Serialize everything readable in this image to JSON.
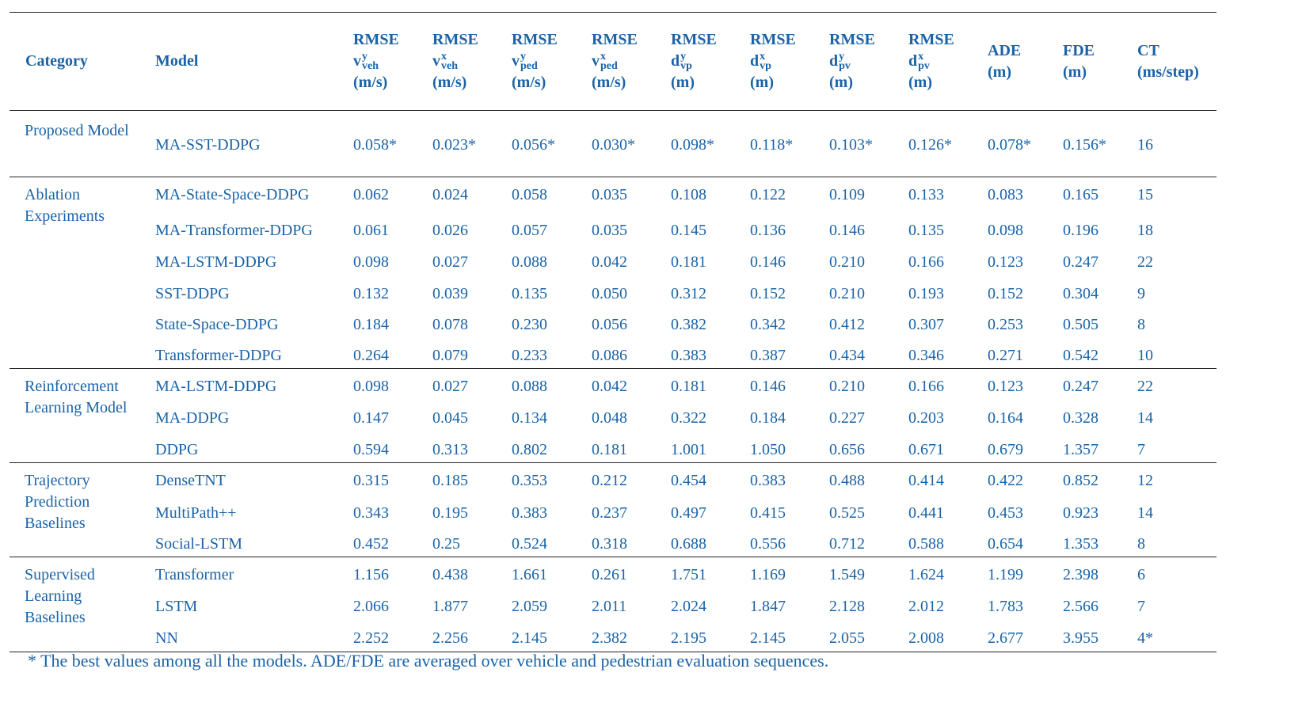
{
  "headers": {
    "category": "Category",
    "model": "Model",
    "metrics": [
      {
        "l1": "RMSE",
        "base": "v",
        "sup": "y",
        "sub": "veh",
        "unit": "(m/s)"
      },
      {
        "l1": "RMSE",
        "base": "v",
        "sup": "x",
        "sub": "veh",
        "unit": "(m/s)"
      },
      {
        "l1": "RMSE",
        "base": "v",
        "sup": "y",
        "sub": "ped",
        "unit": "(m/s)"
      },
      {
        "l1": "RMSE",
        "base": "v",
        "sup": "x",
        "sub": "ped",
        "unit": "(m/s)"
      },
      {
        "l1": "RMSE",
        "base": "d",
        "sup": "y",
        "sub": "vp",
        "unit": "(m)"
      },
      {
        "l1": "RMSE",
        "base": "d",
        "sup": "x",
        "sub": "vp",
        "unit": "(m)"
      },
      {
        "l1": "RMSE",
        "base": "d",
        "sup": "y",
        "sub": "pv",
        "unit": "(m)"
      },
      {
        "l1": "RMSE",
        "base": "d",
        "sup": "x",
        "sub": "pv",
        "unit": "(m)"
      }
    ],
    "ade": {
      "l1": "ADE",
      "l2": "(m)"
    },
    "fde": {
      "l1": "FDE",
      "l2": "(m)"
    },
    "ct": {
      "l1": "CT",
      "l2": "(ms/step)"
    }
  },
  "groups": [
    {
      "category": "Proposed Model",
      "rows": [
        {
          "model": "MA-SST-DDPG",
          "v": [
            "0.058*",
            "0.023*",
            "0.056*",
            "0.030*",
            "0.098*",
            "0.118*",
            "0.103*",
            "0.126*",
            "0.078*",
            "0.156*",
            "16"
          ]
        }
      ]
    },
    {
      "category": "Ablation Experiments",
      "rows": [
        {
          "model": "MA-State-Space-DDPG",
          "v": [
            "0.062",
            "0.024",
            "0.058",
            "0.035",
            "0.108",
            "0.122",
            "0.109",
            "0.133",
            "0.083",
            "0.165",
            "15"
          ]
        },
        {
          "model": "MA-Transformer-DDPG",
          "v": [
            "0.061",
            "0.026",
            "0.057",
            "0.035",
            "0.145",
            "0.136",
            "0.146",
            "0.135",
            "0.098",
            "0.196",
            "18"
          ]
        },
        {
          "model": "MA-LSTM-DDPG",
          "v": [
            "0.098",
            "0.027",
            "0.088",
            "0.042",
            "0.181",
            "0.146",
            "0.210",
            "0.166",
            "0.123",
            "0.247",
            "22"
          ]
        },
        {
          "model": "SST-DDPG",
          "v": [
            "0.132",
            "0.039",
            "0.135",
            "0.050",
            "0.312",
            "0.152",
            "0.210",
            "0.193",
            "0.152",
            "0.304",
            "9"
          ]
        },
        {
          "model": "State-Space-DDPG",
          "v": [
            "0.184",
            "0.078",
            "0.230",
            "0.056",
            "0.382",
            "0.342",
            "0.412",
            "0.307",
            "0.253",
            "0.505",
            "8"
          ]
        },
        {
          "model": "Transformer-DDPG",
          "v": [
            "0.264",
            "0.079",
            "0.233",
            "0.086",
            "0.383",
            "0.387",
            "0.434",
            "0.346",
            "0.271",
            "0.542",
            "10"
          ]
        }
      ]
    },
    {
      "category": "Reinforcement Learning Model",
      "rows": [
        {
          "model": "MA-LSTM-DDPG",
          "v": [
            "0.098",
            "0.027",
            "0.088",
            "0.042",
            "0.181",
            "0.146",
            "0.210",
            "0.166",
            "0.123",
            "0.247",
            "22"
          ]
        },
        {
          "model": "MA-DDPG",
          "v": [
            "0.147",
            "0.045",
            "0.134",
            "0.048",
            "0.322",
            "0.184",
            "0.227",
            "0.203",
            "0.164",
            "0.328",
            "14"
          ]
        },
        {
          "model": "DDPG",
          "v": [
            "0.594",
            "0.313",
            "0.802",
            "0.181",
            "1.001",
            "1.050",
            "0.656",
            "0.671",
            "0.679",
            "1.357",
            "7"
          ]
        }
      ]
    },
    {
      "category": "Trajectory Prediction Baselines",
      "rows": [
        {
          "model": "DenseTNT",
          "v": [
            "0.315",
            "0.185",
            "0.353",
            "0.212",
            "0.454",
            "0.383",
            "0.488",
            "0.414",
            "0.422",
            "0.852",
            "12"
          ]
        },
        {
          "model": "MultiPath++",
          "v": [
            "0.343",
            "0.195",
            "0.383",
            "0.237",
            "0.497",
            "0.415",
            "0.525",
            "0.441",
            "0.453",
            "0.923",
            "14"
          ]
        },
        {
          "model": "Social-LSTM",
          "v": [
            "0.452",
            "0.25",
            "0.524",
            "0.318",
            "0.688",
            "0.556",
            "0.712",
            "0.588",
            "0.654",
            "1.353",
            "8"
          ]
        }
      ]
    },
    {
      "category": "Supervised Learning Baselines",
      "rows": [
        {
          "model": "Transformer",
          "v": [
            "1.156",
            "0.438",
            "1.661",
            "0.261",
            "1.751",
            "1.169",
            "1.549",
            "1.624",
            "1.199",
            "2.398",
            "6"
          ]
        },
        {
          "model": "LSTM",
          "v": [
            "2.066",
            "1.877",
            "2.059",
            "2.011",
            "2.024",
            "1.847",
            "2.128",
            "2.012",
            "1.783",
            "2.566",
            "7"
          ]
        },
        {
          "model": "NN",
          "v": [
            "2.252",
            "2.256",
            "2.145",
            "2.382",
            "2.195",
            "2.145",
            "2.055",
            "2.008",
            "2.677",
            "3.955",
            "4*"
          ]
        }
      ]
    }
  ],
  "footnote": "* The best values among all the models. ADE/FDE are averaged over vehicle and pedestrian evaluation sequences."
}
